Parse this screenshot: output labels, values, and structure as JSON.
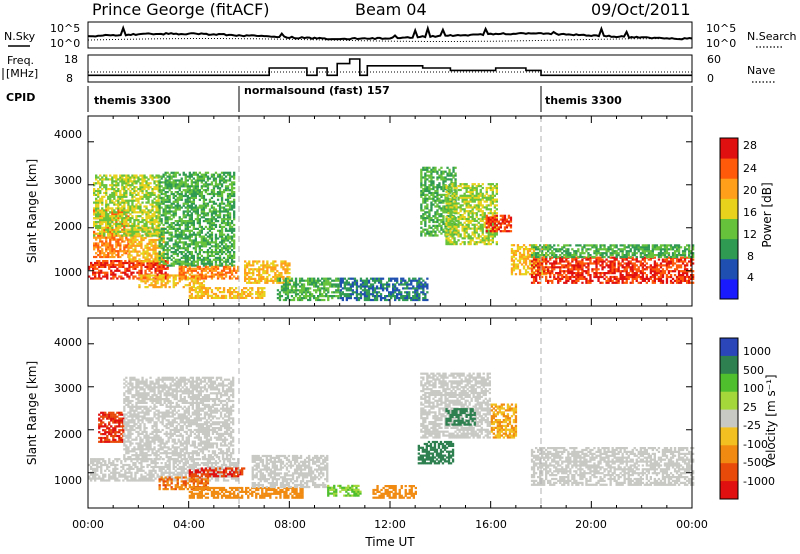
{
  "header": {
    "station": "Prince George (fitACF)",
    "beam": "Beam 04",
    "date": "09/Oct/2011"
  },
  "sky_panel": {
    "left_label": "N.Sky",
    "right_label": "N.Search",
    "left_ticks": [
      "10^5",
      "10^0"
    ],
    "right_ticks": [
      "10^5",
      "10^0"
    ]
  },
  "freq_panel": {
    "left_label_line1": "Freq.",
    "left_label_line2": "[MHz]",
    "right_label": "Nave",
    "left_ticks": [
      "18",
      "8"
    ],
    "right_ticks": [
      "60",
      "0"
    ]
  },
  "cpid_panel": {
    "label": "CPID",
    "programs": [
      {
        "name": "themis 3300",
        "start_h": 0,
        "end_h": 6
      },
      {
        "name": "normalsound (fast) 157",
        "start_h": 6,
        "end_h": 18
      },
      {
        "name": "themis 3300",
        "start_h": 18,
        "end_h": 24
      }
    ]
  },
  "power_panel": {
    "ylabel": "Slant Range [km]",
    "yticks": [
      "4000",
      "3000",
      "2000",
      "1000"
    ],
    "colorbar_label": "Power [dB]",
    "colorbar_ticks": [
      "28",
      "24",
      "20",
      "16",
      "12",
      "8",
      "4"
    ],
    "colors": [
      "#1a1aff",
      "#1f4fb0",
      "#2f9a52",
      "#66c23a",
      "#e8d21c",
      "#ff9f1a",
      "#ff5a0a",
      "#e11010"
    ]
  },
  "velocity_panel": {
    "ylabel": "Slant Range [km]",
    "yticks": [
      "4000",
      "3000",
      "2000",
      "1000"
    ],
    "colorbar_label": "Velocity [m s⁻¹]",
    "colorbar_ticks": [
      "1000",
      "500",
      "100",
      "25",
      "-25",
      "-100",
      "-500",
      "-1000"
    ],
    "colors": [
      "#2a46b8",
      "#2f8050",
      "#4fbf2e",
      "#a4d83a",
      "#c8c8c4",
      "#f2c020",
      "#f08a10",
      "#e84a0a",
      "#e01010"
    ]
  },
  "time_axis": {
    "xlabel": "Time UT",
    "ticks": [
      "00:00",
      "04:00",
      "08:00",
      "12:00",
      "16:00",
      "20:00",
      "00:00"
    ]
  },
  "chart_data": {
    "type": "heatmap",
    "title": "Prince George (fitACF)   Beam 04   09/Oct/2011",
    "xlabel": "Time UT",
    "ylabel": "Slant Range [km]",
    "xlim_hours": [
      0,
      24
    ],
    "ylim": [
      180,
      4600
    ],
    "program_boundaries_h": [
      6,
      18
    ],
    "frequency_mhz": [
      {
        "t0": 0,
        "t1": 6,
        "f": 10.5
      },
      {
        "t0": 6,
        "t1": 7.2,
        "f": 10.5
      },
      {
        "t0": 7.2,
        "t1": 8.7,
        "f": 13.2
      },
      {
        "t0": 8.7,
        "t1": 9.1,
        "f": 10.5
      },
      {
        "t0": 9.1,
        "t1": 9.5,
        "f": 13.2
      },
      {
        "t0": 9.5,
        "t1": 9.9,
        "f": 10.5
      },
      {
        "t0": 9.9,
        "t1": 10.4,
        "f": 14.8
      },
      {
        "t0": 10.4,
        "t1": 10.8,
        "f": 16.5
      },
      {
        "t0": 10.8,
        "t1": 11.1,
        "f": 10.5
      },
      {
        "t0": 11.1,
        "t1": 13.3,
        "f": 14.0
      },
      {
        "t0": 13.3,
        "t1": 14.4,
        "f": 13.2
      },
      {
        "t0": 14.4,
        "t1": 16.2,
        "f": 12.3
      },
      {
        "t0": 16.2,
        "t1": 17.4,
        "f": 13.2
      },
      {
        "t0": 17.4,
        "t1": 18,
        "f": 12.3
      },
      {
        "t0": 18,
        "t1": 24,
        "f": 10.5
      }
    ],
    "power_regions": [
      {
        "t0": 0.0,
        "t1": 3.2,
        "r0": 800,
        "r1": 1250,
        "db": 28
      },
      {
        "t0": 0.2,
        "t1": 1.6,
        "r0": 1300,
        "r1": 2400,
        "db": 24
      },
      {
        "t0": 1.6,
        "t1": 3.0,
        "r0": 1200,
        "r1": 2000,
        "db": 20
      },
      {
        "t0": 0.2,
        "t1": 2.8,
        "r0": 1800,
        "r1": 3200,
        "db": 16
      },
      {
        "t0": 2.8,
        "t1": 5.8,
        "r0": 1100,
        "r1": 3300,
        "db": 12
      },
      {
        "t0": 2.0,
        "t1": 4.6,
        "r0": 600,
        "r1": 900,
        "db": 20
      },
      {
        "t0": 3.6,
        "t1": 6.0,
        "r0": 800,
        "r1": 1100,
        "db": 24
      },
      {
        "t0": 4.0,
        "t1": 7.0,
        "r0": 350,
        "r1": 600,
        "db": 20
      },
      {
        "t0": 6.2,
        "t1": 8.0,
        "r0": 700,
        "r1": 1200,
        "db": 20
      },
      {
        "t0": 7.5,
        "t1": 10.0,
        "r0": 300,
        "r1": 800,
        "db": 12
      },
      {
        "t0": 10.0,
        "t1": 13.5,
        "r0": 300,
        "r1": 800,
        "db": 8
      },
      {
        "t0": 13.2,
        "t1": 14.6,
        "r0": 1800,
        "r1": 3400,
        "db": 12
      },
      {
        "t0": 14.2,
        "t1": 16.2,
        "r0": 1600,
        "r1": 3000,
        "db": 16
      },
      {
        "t0": 15.8,
        "t1": 16.8,
        "r0": 1900,
        "r1": 2300,
        "db": 28
      },
      {
        "t0": 16.8,
        "t1": 18.2,
        "r0": 900,
        "r1": 1600,
        "db": 20
      },
      {
        "t0": 17.6,
        "t1": 24.0,
        "r0": 700,
        "r1": 1300,
        "db": 28
      },
      {
        "t0": 17.6,
        "t1": 24.0,
        "r0": 1300,
        "r1": 1600,
        "db": 12
      }
    ],
    "velocity_regions": [
      {
        "t0": 0.0,
        "t1": 6.0,
        "r0": 800,
        "r1": 1300,
        "v": 0
      },
      {
        "t0": 0.4,
        "t1": 1.4,
        "r0": 1700,
        "r1": 2400,
        "v": -800
      },
      {
        "t0": 1.4,
        "t1": 5.8,
        "r0": 1300,
        "r1": 3200,
        "v": 0
      },
      {
        "t0": 2.8,
        "t1": 4.8,
        "r0": 600,
        "r1": 900,
        "v": -500
      },
      {
        "t0": 4.0,
        "t1": 6.2,
        "r0": 900,
        "r1": 1100,
        "v": -800
      },
      {
        "t0": 4.0,
        "t1": 8.5,
        "r0": 400,
        "r1": 650,
        "v": -200
      },
      {
        "t0": 6.5,
        "t1": 9.5,
        "r0": 650,
        "r1": 1400,
        "v": 0
      },
      {
        "t0": 9.5,
        "t1": 10.8,
        "r0": 450,
        "r1": 700,
        "v": 60
      },
      {
        "t0": 11.3,
        "t1": 13.0,
        "r0": 400,
        "r1": 700,
        "v": -300
      },
      {
        "t0": 13.1,
        "t1": 14.5,
        "r0": 1200,
        "r1": 1700,
        "v": 300
      },
      {
        "t0": 13.2,
        "t1": 16.0,
        "r0": 1800,
        "r1": 3300,
        "v": 0
      },
      {
        "t0": 14.2,
        "t1": 15.4,
        "r0": 2100,
        "r1": 2500,
        "v": 250
      },
      {
        "t0": 16.0,
        "t1": 17.0,
        "r0": 1800,
        "r1": 2600,
        "v": -100
      },
      {
        "t0": 17.6,
        "t1": 24.0,
        "r0": 700,
        "r1": 1600,
        "v": 0
      }
    ]
  }
}
